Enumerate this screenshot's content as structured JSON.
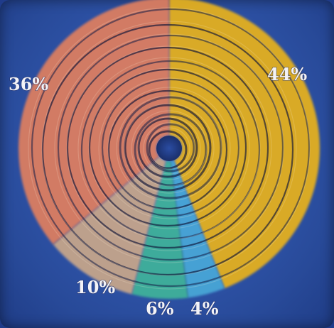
{
  "chart_data": {
    "type": "pie",
    "slices": [
      {
        "label": "44%",
        "value": 44,
        "color": "#e8b21f"
      },
      {
        "label": "4%",
        "value": 4,
        "color": "#4aa8d8"
      },
      {
        "label": "6%",
        "value": 6,
        "color": "#3fb39a"
      },
      {
        "label": "10%",
        "value": 10,
        "color": "#c9a78a"
      },
      {
        "label": "36%",
        "value": 36,
        "color": "#e07f5e"
      }
    ],
    "style": "swirl",
    "legend": "none"
  }
}
